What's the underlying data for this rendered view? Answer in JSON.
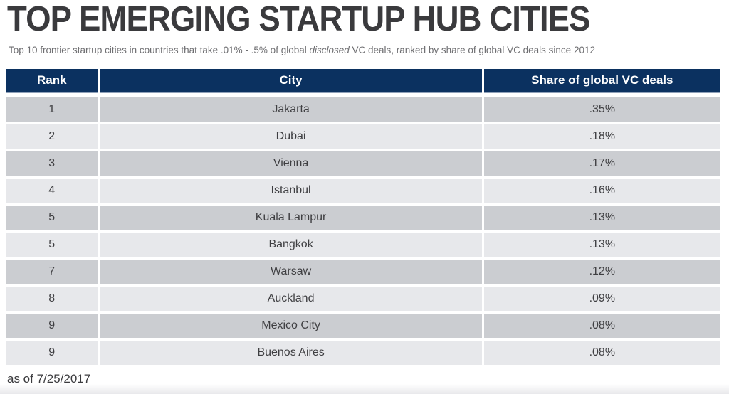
{
  "page": {
    "title": "TOP EMERGING STARTUP HUB CITIES",
    "subtitle": {
      "before_italic": "Top 10 frontier startup cities in countries that take .01% - .5% of global ",
      "italic": "disclosed",
      "after_italic": " VC deals, ranked by share of global VC deals since 2012"
    },
    "footnote": "as of 7/25/2017"
  },
  "table": {
    "columns": [
      "Rank",
      "City",
      "Share of global VC deals"
    ],
    "rows": [
      {
        "rank": "1",
        "city": "Jakarta",
        "share": ".35%"
      },
      {
        "rank": "2",
        "city": "Dubai",
        "share": ".18%"
      },
      {
        "rank": "3",
        "city": "Vienna",
        "share": ".17%"
      },
      {
        "rank": "4",
        "city": "Istanbul",
        "share": ".16%"
      },
      {
        "rank": "5",
        "city": "Kuala Lampur",
        "share": ".13%"
      },
      {
        "rank": "5",
        "city": "Bangkok",
        "share": ".13%"
      },
      {
        "rank": "7",
        "city": "Warsaw",
        "share": ".12%"
      },
      {
        "rank": "8",
        "city": "Auckland",
        "share": ".09%"
      },
      {
        "rank": "9",
        "city": "Mexico City",
        "share": ".08%"
      },
      {
        "rank": "9",
        "city": "Buenos Aires",
        "share": ".08%"
      }
    ]
  },
  "chart_data": {
    "type": "table",
    "title": "TOP EMERGING STARTUP HUB CITIES",
    "subtitle": "Top 10 frontier startup cities in countries that take .01% - .5% of global disclosed VC deals, ranked by share of global VC deals since 2012",
    "columns": [
      "Rank",
      "City",
      "Share of global VC deals"
    ],
    "rows": [
      [
        1,
        "Jakarta",
        0.35
      ],
      [
        2,
        "Dubai",
        0.18
      ],
      [
        3,
        "Vienna",
        0.17
      ],
      [
        4,
        "Istanbul",
        0.16
      ],
      [
        5,
        "Kuala Lampur",
        0.13
      ],
      [
        5,
        "Bangkok",
        0.13
      ],
      [
        7,
        "Warsaw",
        0.12
      ],
      [
        8,
        "Auckland",
        0.09
      ],
      [
        9,
        "Mexico City",
        0.08
      ],
      [
        9,
        "Buenos Aires",
        0.08
      ]
    ],
    "share_unit": "% of global VC deals",
    "as_of": "as of 7/25/2017"
  },
  "colors": {
    "header_bg": "#0b3160",
    "header_text": "#ffffff",
    "header_border": "#8fa0b8",
    "row_odd": "#cbcdd1",
    "row_even": "#e7e8eb",
    "cell_text": "#3f3f42",
    "title_text": "#3a3a3d",
    "subtitle_text": "#6e6e71",
    "footnote_text": "#3b3b3e"
  }
}
